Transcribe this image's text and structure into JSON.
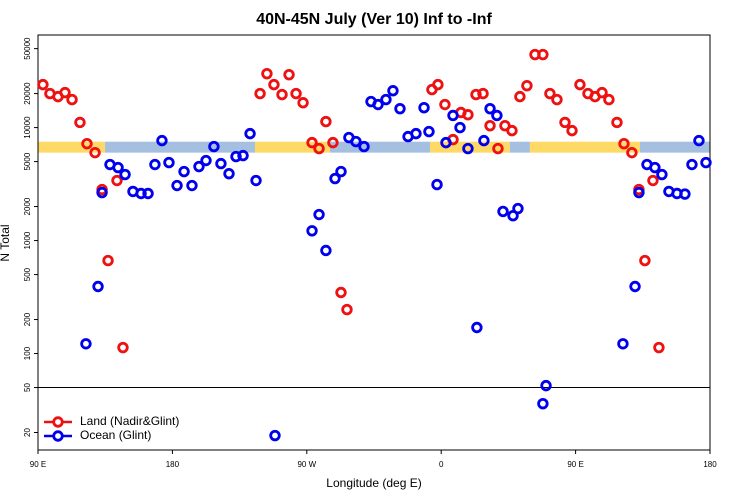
{
  "chart_data": {
    "type": "scatter",
    "title": "40N-45N July (Ver 10)   Inf to -Inf",
    "x_label": "Longitude (deg E)",
    "y_label": "N Total",
    "log_y": true,
    "xlim": [
      90,
      540
    ],
    "ylim": [
      14,
      66000
    ],
    "xticks": [
      {
        "value": 90,
        "label": "90 E"
      },
      180,
      {
        "value": 270,
        "label": "90 W"
      },
      {
        "value": 360,
        "label": "0"
      },
      {
        "value": 450,
        "label": "90 E"
      },
      {
        "value": 540,
        "label": "180"
      }
    ],
    "yticks": [
      20,
      50,
      100,
      200,
      500,
      1000,
      2000,
      5000,
      10000,
      20000,
      50000
    ],
    "reference_line": 50,
    "mask_band": [
      6000,
      7500
    ],
    "mask_segments": [
      {
        "start": 90,
        "end": 134.9,
        "color": "#ffd966"
      },
      {
        "start": 134.9,
        "end": 235.3,
        "color": "#a4bfe0"
      },
      {
        "start": 235.3,
        "end": 285.5,
        "color": "#ffd966"
      },
      {
        "start": 285.5,
        "end": 352.5,
        "color": "#a4bfe0"
      },
      {
        "start": 352.5,
        "end": 406,
        "color": "#ffd966"
      },
      {
        "start": 406,
        "end": 419.4,
        "color": "#a4bfe0"
      },
      {
        "start": 419.4,
        "end": 493.1,
        "color": "#ffd966"
      },
      {
        "start": 493.1,
        "end": 540,
        "color": "#a4bfe0"
      }
    ],
    "legend": "bottom-left",
    "series": [
      {
        "name": "Land (Nadir&Glint)",
        "color": "#ee1111",
        "x": [
          93.3,
          98.0,
          103.4,
          108.1,
          112.8,
          118.1,
          122.8,
          128.2,
          132.9,
          136.9,
          142.9,
          146.9,
          238.7,
          243.3,
          248.0,
          253.4,
          258.1,
          262.8,
          267.5,
          273.5,
          278.2,
          282.8,
          287.5,
          292.9,
          296.9,
          353.8,
          357.8,
          362.5,
          367.9,
          373.2,
          377.9,
          383.3,
          388.0,
          392.7,
          398.0,
          402.7,
          407.4,
          412.7,
          417.4,
          422.8,
          428.1,
          432.8,
          437.5,
          442.9,
          447.6,
          452.9,
          458.3,
          463.0,
          467.7,
          472.3,
          477.7,
          482.4,
          487.7,
          492.4,
          496.4,
          501.8,
          505.8
        ],
        "values": [
          24000,
          20000,
          18800,
          20400,
          17700,
          11100,
          7200,
          6000,
          2830,
          665,
          3400,
          113,
          20000,
          30000,
          24000,
          19600,
          29400,
          20000,
          16600,
          7360,
          6520,
          11300,
          7360,
          347,
          245,
          21700,
          24000,
          16000,
          7830,
          13600,
          13000,
          19600,
          20000,
          10400,
          6520,
          10400,
          9400,
          18800,
          23500,
          44300,
          44300,
          20000,
          17700,
          11100,
          9400,
          24000,
          20000,
          18800,
          20400,
          17700,
          11100,
          7200,
          6000,
          2830,
          665,
          3400,
          113
        ]
      },
      {
        "name": "Ocean (Glint)",
        "color": "#0000ee",
        "x": [
          122.1,
          130.2,
          132.9,
          138.2,
          143.6,
          148.3,
          153.6,
          159.0,
          163.7,
          168.3,
          173.0,
          177.7,
          183.1,
          187.8,
          193.1,
          197.8,
          202.5,
          207.8,
          212.5,
          217.9,
          222.6,
          227.3,
          232.0,
          236.0,
          248.7,
          273.5,
          278.2,
          282.8,
          288.9,
          292.9,
          298.2,
          302.9,
          308.3,
          313.0,
          317.7,
          323.0,
          327.7,
          332.4,
          337.8,
          343.1,
          348.5,
          351.8,
          357.2,
          363.2,
          367.9,
          372.6,
          377.9,
          383.9,
          388.6,
          392.7,
          397.3,
          401.4,
          408.1,
          411.4,
          428.1,
          430.2,
          481.7,
          489.8,
          492.4,
          497.8,
          503.1,
          507.8,
          512.5,
          517.9,
          523.2,
          527.9,
          532.6,
          537.3
        ],
        "values": [
          122,
          392,
          2660,
          4710,
          4430,
          3840,
          2720,
          2610,
          2610,
          4710,
          7670,
          4900,
          3070,
          4080,
          3070,
          4520,
          5110,
          6790,
          4800,
          3910,
          5540,
          5650,
          8840,
          3400,
          18.8,
          1220,
          1700,
          817,
          3540,
          4080,
          8160,
          7520,
          6790,
          17000,
          16000,
          17700,
          21200,
          14700,
          8320,
          8840,
          15000,
          9220,
          3130,
          7360,
          12800,
          10000,
          6520,
          170,
          7670,
          14700,
          12800,
          1810,
          1660,
          1920,
          36,
          52,
          122,
          392,
          2660,
          4710,
          4430,
          3840,
          2720,
          2610,
          2580,
          4710,
          7670,
          4900
        ]
      }
    ]
  }
}
